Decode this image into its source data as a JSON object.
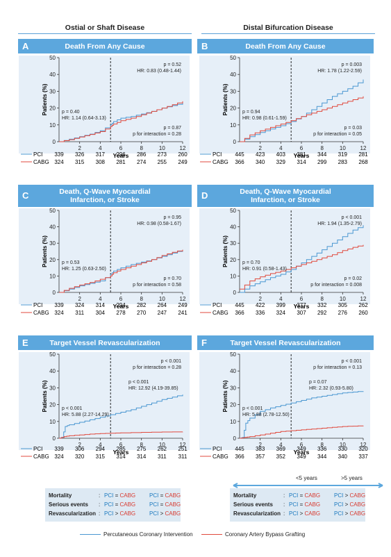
{
  "columns": [
    "Ostial or Shaft Disease",
    "Distal Bifurcation Disease"
  ],
  "panels": [
    {
      "letter": "A",
      "title": "Death From Any Cause",
      "yticks": [
        "0",
        "10",
        "20",
        "30",
        "40",
        "50"
      ],
      "xticks": [
        "2",
        "4",
        "6",
        "8",
        "10",
        "12"
      ],
      "ylabel": "Patients (%)",
      "xlabel": "Years",
      "ann_left": [
        "p = 0.40",
        "HR: 1.14 (0.64-3.13)"
      ],
      "ann_right_top": [
        "p = 0.52",
        "HR: 0.83 (0.48-1.44)"
      ],
      "ann_right_bottom": [
        "p = 0.87",
        "p for interaction = 0.28"
      ],
      "risk": {
        "pci": [
          "339",
          "326",
          "317",
          "296",
          "286",
          "273",
          "260"
        ],
        "cabg": [
          "324",
          "315",
          "308",
          "281",
          "274",
          "255",
          "249"
        ]
      }
    },
    {
      "letter": "B",
      "title": "Death From Any Cause",
      "yticks": [
        "0",
        "10",
        "20",
        "30",
        "40",
        "50"
      ],
      "xticks": [
        "2",
        "4",
        "6",
        "8",
        "10",
        "12"
      ],
      "ylabel": "Patients (%)",
      "xlabel": "Years",
      "ann_left": [
        "p = 0.94",
        "HR: 0.98 (0.61-1.59)"
      ],
      "ann_right_top": [
        "p = 0.003",
        "HR: 1.78 (1.22-2.59)"
      ],
      "ann_right_bottom": [
        "p = 0.03",
        "p for interaction = 0.05"
      ],
      "risk": {
        "pci": [
          "445",
          "423",
          "403",
          "381",
          "344",
          "319",
          "281"
        ],
        "cabg": [
          "366",
          "340",
          "329",
          "314",
          "299",
          "283",
          "268"
        ]
      }
    },
    {
      "letter": "C",
      "title": "Death, Q-Wave Myocardial Infarction, or Stroke",
      "yticks": [
        "0",
        "10",
        "20",
        "30",
        "40",
        "50"
      ],
      "xticks": [
        "2",
        "4",
        "6",
        "8",
        "10",
        "12"
      ],
      "ylabel": "Patients (%)",
      "xlabel": "Years",
      "ann_left": [
        "p = 0.53",
        "HR: 1.25 (0.63-2.50)"
      ],
      "ann_right_top": [
        "p = 0.95",
        "HR: 0.98 (0.58-1.67)"
      ],
      "ann_right_bottom": [
        "p = 0.70",
        "p for interaction = 0.58"
      ],
      "risk": {
        "pci": [
          "339",
          "324",
          "314",
          "294",
          "282",
          "264",
          "249"
        ],
        "cabg": [
          "324",
          "311",
          "304",
          "278",
          "270",
          "247",
          "241"
        ]
      }
    },
    {
      "letter": "D",
      "title": "Death, Q-Wave Myocardial Infarction, or Stroke",
      "yticks": [
        "0",
        "10",
        "20",
        "30",
        "40",
        "50"
      ],
      "xticks": [
        "2",
        "4",
        "6",
        "8",
        "10",
        "12"
      ],
      "ylabel": "Patients (%)",
      "xlabel": "Years",
      "ann_left": [
        "p = 0.70",
        "HR: 0.91 (0.58-1.43)"
      ],
      "ann_right_top": [
        "p < 0.001",
        "HR: 1.94 (1.35-2.79)"
      ],
      "ann_right_bottom": [
        "p = 0.02",
        "p for interaction = 0.008"
      ],
      "risk": {
        "pci": [
          "445",
          "422",
          "399",
          "377",
          "332",
          "305",
          "262"
        ],
        "cabg": [
          "366",
          "336",
          "324",
          "307",
          "292",
          "276",
          "260"
        ]
      }
    },
    {
      "letter": "E",
      "title": "Target Vessel Revascularization",
      "yticks": [
        "0",
        "10",
        "20",
        "30",
        "40",
        "50"
      ],
      "xticks": [
        "2",
        "4",
        "6",
        "8",
        "10",
        "12"
      ],
      "ylabel": "Patients (%)",
      "xlabel": "Years",
      "ann_left": [
        "p < 0.001",
        "HR: 5.88 (2.27-14.29)"
      ],
      "ann_right_top": [
        "p < 0.001",
        "p for interaction = 0.28"
      ],
      "ann_right_mid": [
        "p < 0.001",
        "HR: 12.92 (4.19-39.85)"
      ],
      "risk": {
        "pci": [
          "339",
          "306",
          "294",
          "285",
          "275",
          "262",
          "251"
        ],
        "cabg": [
          "324",
          "320",
          "315",
          "314",
          "314",
          "311",
          "311"
        ]
      }
    },
    {
      "letter": "F",
      "title": "Target Vessel Revascularization",
      "yticks": [
        "0",
        "10",
        "20",
        "30",
        "40",
        "50"
      ],
      "xticks": [
        "2",
        "4",
        "6",
        "8",
        "10",
        "12"
      ],
      "ylabel": "Patients (%)",
      "xlabel": "Years",
      "ann_left": [
        "p < 0.001",
        "HR: 5.88 (2.78-12.50)"
      ],
      "ann_right_top": [
        "p < 0.001",
        "p for interaction = 0.13"
      ],
      "ann_right_mid": [
        "p = 0.07",
        "HR: 2.32 (0.93-5.80)"
      ],
      "risk": {
        "pci": [
          "445",
          "383",
          "369",
          "349",
          "336",
          "330",
          "320"
        ],
        "cabg": [
          "366",
          "357",
          "352",
          "349",
          "344",
          "340",
          "337"
        ]
      }
    }
  ],
  "risk_labels": {
    "pci": "PCI",
    "cabg": "CABG"
  },
  "period_labels": [
    "<5 years",
    ">5 years"
  ],
  "summary_rows": [
    {
      "label": "Mortality",
      "lt": [
        "PCI",
        "=",
        "CABG"
      ],
      "gt": [
        "PCI",
        ">",
        "CABG"
      ]
    },
    {
      "label": "Serious events",
      "lt": [
        "PCI",
        "=",
        "CABG"
      ],
      "gt": [
        "PCI",
        ">",
        "CABG"
      ]
    },
    {
      "label": "Revascularization",
      "lt": [
        "PCI",
        ">",
        "CABG"
      ],
      "gt": [
        "PCI",
        ">",
        "CABG"
      ]
    }
  ],
  "summary_rows_left": [
    {
      "label": "Mortality",
      "lt": [
        "PCI",
        "=",
        "CABG"
      ],
      "gt": [
        "PCI",
        "=",
        "CABG"
      ]
    },
    {
      "label": "Serious events",
      "lt": [
        "PCI",
        "=",
        "CABG"
      ],
      "gt": [
        "PCI",
        "=",
        "CABG"
      ]
    },
    {
      "label": "Revascularization",
      "lt": [
        "PCI",
        ">",
        "CABG"
      ],
      "gt": [
        "PCI",
        ">",
        "CABG"
      ]
    }
  ],
  "legend": {
    "pci": "Percutaneous Coronary Intervention",
    "cabg": "Coronary Artery Bypass Grafting"
  },
  "colors": {
    "pci": "#4a97d1",
    "cabg": "#e0493c",
    "panel_bg": "#e6eff8",
    "header": "#5ca7dd"
  },
  "chart_data": [
    {
      "type": "line",
      "panel": "A",
      "xlim": [
        0,
        12
      ],
      "ylim": [
        0,
        50
      ],
      "series": [
        {
          "name": "PCI",
          "x": [
            0,
            1,
            2,
            3,
            4,
            5,
            5.3,
            6,
            7,
            8,
            9,
            10,
            11,
            12
          ],
          "y": [
            0,
            1.5,
            3,
            4.5,
            6.5,
            10,
            12,
            14,
            15,
            16.5,
            18,
            20,
            21.5,
            23
          ]
        },
        {
          "name": "CABG",
          "x": [
            0,
            1,
            2,
            3,
            4,
            5,
            5.3,
            6,
            7,
            8,
            9,
            10,
            11,
            12
          ],
          "y": [
            0,
            1.2,
            2.8,
            4.3,
            6,
            9,
            10.5,
            12.5,
            14,
            16,
            18,
            20,
            22,
            24
          ]
        }
      ]
    },
    {
      "type": "line",
      "panel": "B",
      "xlim": [
        0,
        12
      ],
      "ylim": [
        0,
        50
      ],
      "series": [
        {
          "name": "PCI",
          "x": [
            0,
            1,
            2,
            3,
            4,
            5,
            6,
            7,
            8,
            9,
            10,
            11,
            12
          ],
          "y": [
            0,
            3,
            5.5,
            7.5,
            9.5,
            12,
            15,
            19,
            23,
            27,
            30,
            33,
            37
          ]
        },
        {
          "name": "CABG",
          "x": [
            0,
            1,
            2,
            3,
            4,
            5,
            6,
            7,
            8,
            9,
            10,
            11,
            12
          ],
          "y": [
            0,
            4,
            6.5,
            8.5,
            10.5,
            12.5,
            15,
            17,
            19,
            21,
            23,
            25,
            27
          ]
        }
      ]
    },
    {
      "type": "line",
      "panel": "C",
      "xlim": [
        0,
        12
      ],
      "ylim": [
        0,
        50
      ],
      "series": [
        {
          "name": "PCI",
          "x": [
            0,
            1,
            2,
            3,
            4,
            5,
            5.3,
            6,
            7,
            8,
            9,
            10,
            11,
            12
          ],
          "y": [
            0,
            2,
            4,
            5.5,
            7,
            11,
            13,
            15,
            17,
            18.5,
            20,
            22,
            24,
            26
          ]
        },
        {
          "name": "CABG",
          "x": [
            0,
            1,
            2,
            3,
            4,
            5,
            5.3,
            6,
            7,
            8,
            9,
            10,
            11,
            12
          ],
          "y": [
            0,
            2.5,
            4.5,
            6,
            8,
            10,
            12,
            14,
            16,
            18,
            20,
            22.5,
            24.5,
            26
          ]
        }
      ]
    },
    {
      "type": "line",
      "panel": "D",
      "xlim": [
        0,
        12
      ],
      "ylim": [
        0,
        50
      ],
      "series": [
        {
          "name": "PCI",
          "x": [
            0,
            1,
            2,
            3,
            4,
            5,
            6,
            7,
            8,
            9,
            10,
            11,
            12
          ],
          "y": [
            0,
            4,
            6.5,
            9,
            11,
            14,
            18,
            22,
            26,
            30,
            34,
            38,
            41
          ]
        },
        {
          "name": "CABG",
          "x": [
            0,
            1,
            2,
            3,
            4,
            5,
            6,
            7,
            8,
            9,
            10,
            11,
            12
          ],
          "y": [
            2,
            7,
            9.5,
            11.5,
            13,
            15,
            17,
            19,
            21,
            23,
            25.5,
            27.5,
            29
          ]
        }
      ]
    },
    {
      "type": "line",
      "panel": "E",
      "xlim": [
        0,
        12
      ],
      "ylim": [
        0,
        50
      ],
      "series": [
        {
          "name": "PCI",
          "x": [
            0,
            0.3,
            0.6,
            1,
            2,
            3,
            4,
            5,
            6,
            7,
            8,
            9,
            10,
            11,
            12
          ],
          "y": [
            0,
            0.5,
            7,
            8,
            9.5,
            11,
            12.5,
            14,
            15.5,
            17,
            19,
            21,
            23,
            24.5,
            26
          ]
        },
        {
          "name": "CABG",
          "x": [
            0,
            0.5,
            1,
            2,
            3,
            4,
            5,
            6,
            8,
            10,
            12
          ],
          "y": [
            0,
            1,
            1.5,
            2,
            2.5,
            2.8,
            3,
            3.2,
            3.5,
            3.7,
            3.8
          ]
        }
      ]
    },
    {
      "type": "line",
      "panel": "F",
      "xlim": [
        0,
        12
      ],
      "ylim": [
        0,
        50
      ],
      "series": [
        {
          "name": "PCI",
          "x": [
            0,
            0.3,
            0.6,
            1,
            2,
            3,
            4,
            5,
            6,
            7,
            8,
            9,
            10,
            11,
            12
          ],
          "y": [
            0,
            0.5,
            9,
            12,
            16,
            18,
            19.5,
            21,
            22.5,
            24,
            25,
            26,
            27,
            27.5,
            28
          ]
        },
        {
          "name": "CABG",
          "x": [
            0,
            0.5,
            1,
            2,
            3,
            4,
            5,
            6,
            7,
            8,
            9,
            10,
            11,
            12
          ],
          "y": [
            0,
            0.5,
            1,
            2,
            3,
            4,
            4.5,
            5,
            5.5,
            6,
            6.5,
            7,
            7.2,
            7.5
          ]
        }
      ]
    }
  ]
}
